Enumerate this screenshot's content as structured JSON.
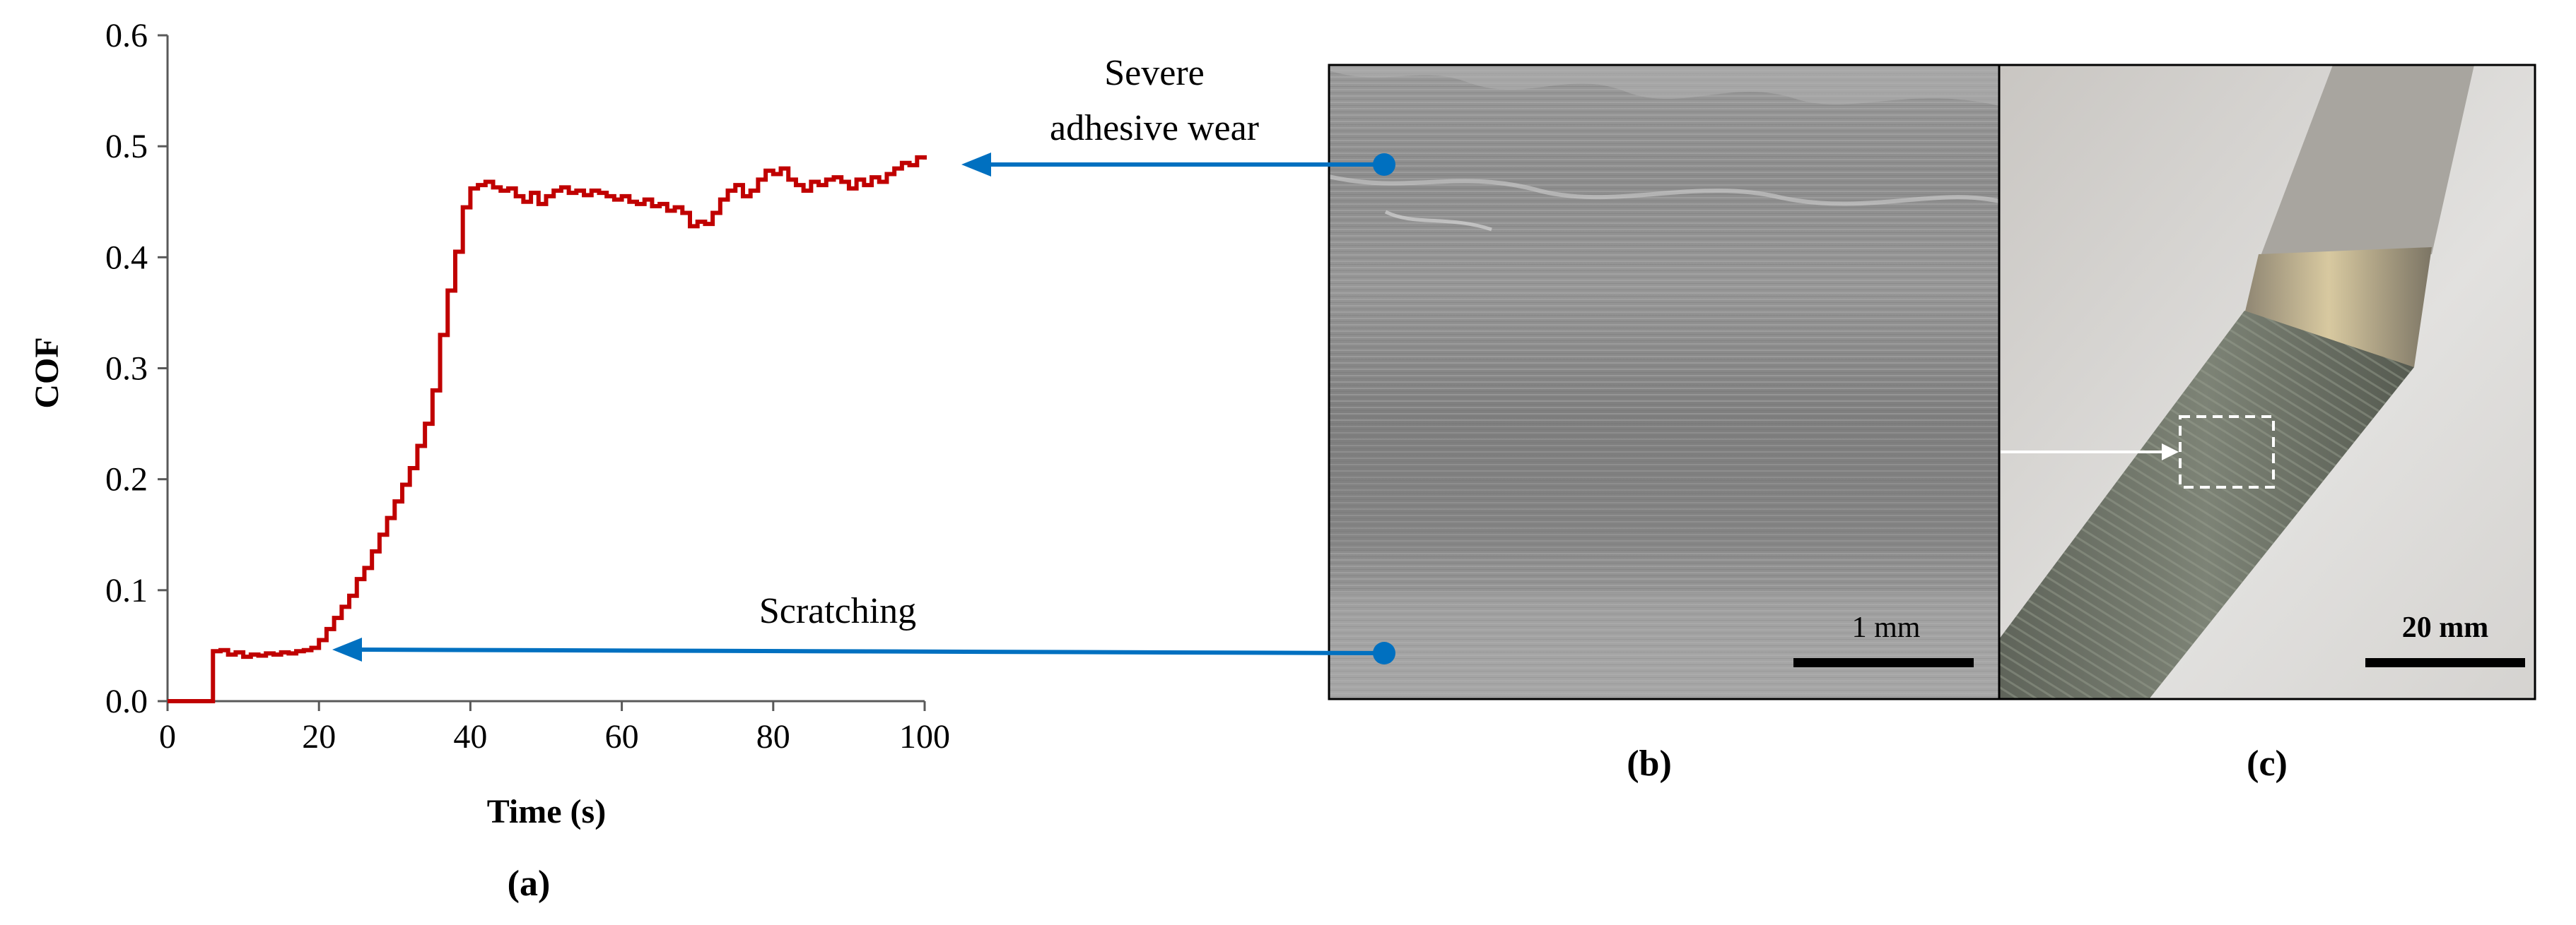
{
  "chart_data": {
    "type": "line",
    "title": "",
    "xlabel": "Time (s)",
    "ylabel": "COF",
    "xlim": [
      0,
      100
    ],
    "ylim": [
      0,
      0.6
    ],
    "xticks": [
      0,
      20,
      40,
      60,
      80,
      100
    ],
    "xtick_labels": [
      "0",
      "20",
      "40",
      "60",
      "80",
      "100"
    ],
    "yticks": [
      0,
      0.1,
      0.2,
      0.3,
      0.4,
      0.5,
      0.6
    ],
    "ytick_labels": [
      "0.0",
      "0.1",
      "0.2",
      "0.3",
      "0.4",
      "0.5",
      "0.6"
    ],
    "grid": false,
    "series": [
      {
        "name": "COF",
        "color": "#C00000",
        "x": [
          0,
          5.8,
          6.0,
          7,
          8,
          9,
          10,
          11,
          12,
          13,
          14,
          15,
          16,
          17,
          18,
          19,
          20,
          21,
          22,
          23,
          24,
          25,
          26,
          27,
          28,
          29,
          30,
          31,
          32,
          33,
          34,
          35,
          36,
          37,
          38,
          39,
          40,
          41,
          42,
          43,
          44,
          45,
          46,
          47,
          48,
          49,
          50,
          51,
          52,
          53,
          54,
          55,
          56,
          57,
          58,
          59,
          60,
          61,
          62,
          63,
          64,
          65,
          66,
          67,
          68,
          69,
          70,
          71,
          72,
          73,
          74,
          75,
          76,
          77,
          78,
          79,
          80,
          81,
          82,
          83,
          84,
          85,
          86,
          87,
          88,
          89,
          90,
          91,
          92,
          93,
          94,
          95,
          96,
          97,
          98,
          99,
          100
        ],
        "y": [
          0,
          0,
          0.045,
          0.046,
          0.042,
          0.044,
          0.04,
          0.042,
          0.041,
          0.043,
          0.042,
          0.044,
          0.043,
          0.045,
          0.046,
          0.048,
          0.055,
          0.065,
          0.075,
          0.085,
          0.095,
          0.11,
          0.12,
          0.135,
          0.15,
          0.165,
          0.18,
          0.195,
          0.21,
          0.23,
          0.25,
          0.28,
          0.33,
          0.37,
          0.405,
          0.445,
          0.462,
          0.465,
          0.468,
          0.463,
          0.46,
          0.462,
          0.455,
          0.45,
          0.458,
          0.448,
          0.455,
          0.46,
          0.463,
          0.458,
          0.46,
          0.456,
          0.46,
          0.458,
          0.455,
          0.452,
          0.455,
          0.45,
          0.448,
          0.452,
          0.446,
          0.448,
          0.442,
          0.445,
          0.44,
          0.428,
          0.432,
          0.43,
          0.44,
          0.452,
          0.46,
          0.465,
          0.455,
          0.46,
          0.47,
          0.478,
          0.475,
          0.48,
          0.47,
          0.465,
          0.46,
          0.468,
          0.465,
          0.47,
          0.472,
          0.468,
          0.462,
          0.47,
          0.465,
          0.472,
          0.468,
          0.475,
          0.48,
          0.485,
          0.483,
          0.49,
          0.488
        ]
      }
    ]
  },
  "annotations": {
    "severe_wear_line1": "Severe",
    "severe_wear_line2": "adhesive wear",
    "scratching": "Scratching"
  },
  "panels": {
    "a_label": "(a)",
    "b_label": "(b)",
    "c_label": "(c)",
    "b_scalebar": "1 mm",
    "c_scalebar": "20 mm"
  },
  "colors": {
    "curve": "#C00000",
    "arrow": "#0070C0",
    "axis": "#595959"
  }
}
